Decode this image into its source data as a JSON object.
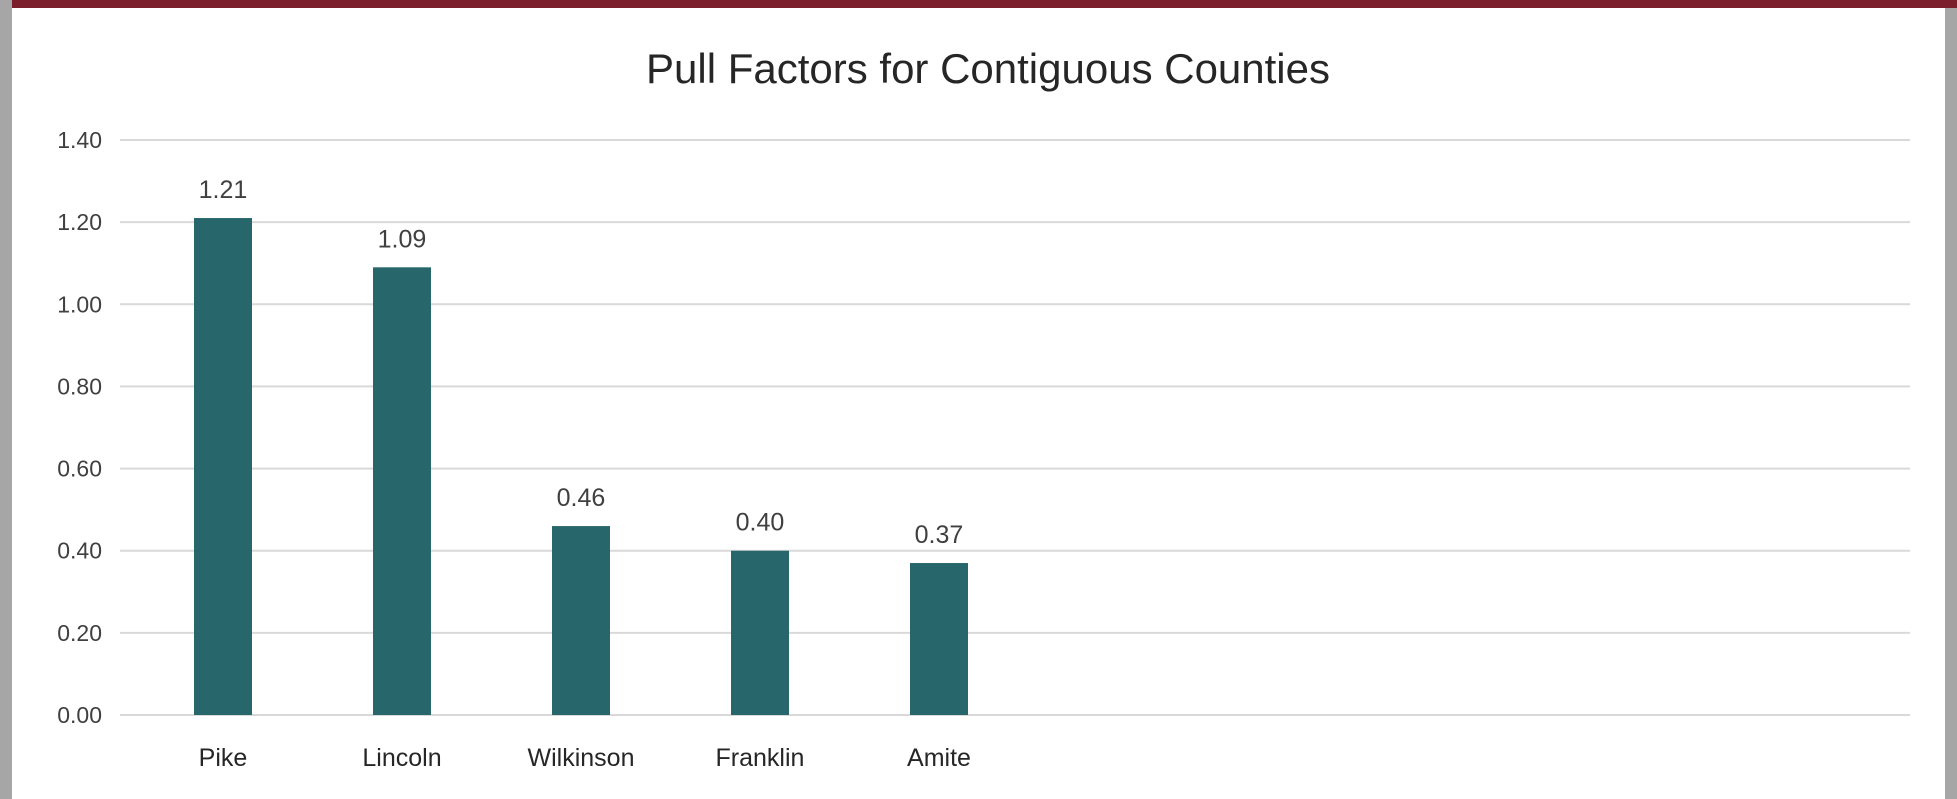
{
  "chart_data": {
    "type": "bar",
    "title": "Pull Factors for Contiguous Counties",
    "xlabel": "",
    "ylabel": "",
    "categories": [
      "Pike",
      "Lincoln",
      "Wilkinson",
      "Franklin",
      "Amite"
    ],
    "values": [
      1.21,
      1.09,
      0.46,
      0.4,
      0.37
    ],
    "data_labels": [
      "1.21",
      "1.09",
      "0.46",
      "0.40",
      "0.37"
    ],
    "ylim": [
      0,
      1.4
    ],
    "yticks": [
      0,
      0.2,
      0.4,
      0.6,
      0.8,
      1.0,
      1.2,
      1.4
    ],
    "ytick_labels": [
      "0.00",
      "0.20",
      "0.40",
      "0.60",
      "0.80",
      "1.00",
      "1.20",
      "1.40"
    ],
    "grid": true,
    "legend": "none",
    "colors": {
      "bar": "#27666b",
      "grid": "#d9d9d9",
      "frame_top": "#7a1f2b",
      "frame_side": "#a6a6a6"
    }
  }
}
